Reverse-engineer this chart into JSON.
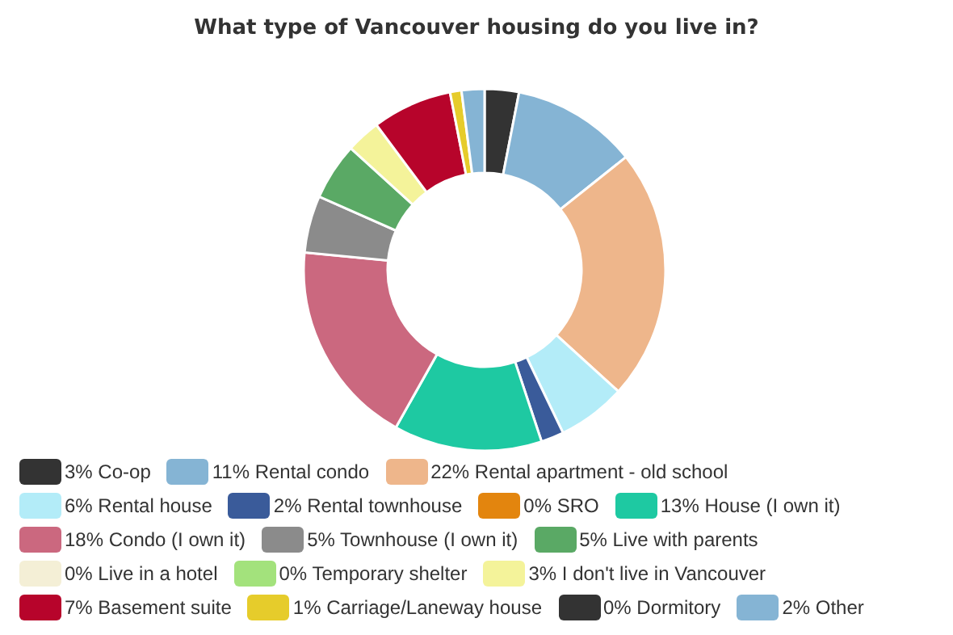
{
  "chart_data": {
    "type": "donut",
    "title": "What type of Vancouver housing do you live in?",
    "categories": [
      "3% Co-op",
      "11% Rental condo",
      "22% Rental apartment - old school",
      "6% Rental house",
      "2% Rental townhouse",
      "0% SRO",
      "13% House (I own it)",
      "18% Condo (I own it)",
      "5% Townhouse (I own it)",
      "5% Live with parents",
      "0% Live in a hotel",
      "0% Temporary shelter",
      "3% I don't live in Vancouver",
      "7% Basement suite",
      "1% Carriage/Laneway house",
      "0% Dormitory",
      "2% Other"
    ],
    "values": [
      3,
      11,
      22,
      6,
      2,
      0,
      13,
      18,
      5,
      5,
      0,
      0,
      3,
      7,
      1,
      0,
      2
    ],
    "colors": [
      "#333333",
      "#85b4d4",
      "#eeb68b",
      "#b3ecf8",
      "#3a5b9a",
      "#e3850e",
      "#1ec9a2",
      "#cb687f",
      "#8b8b8b",
      "#5aa965",
      "#f4efd6",
      "#a3e27c",
      "#f4f39a",
      "#b7042b",
      "#e6cc2b",
      "#333333",
      "#85b4d4"
    ],
    "legend": "bottom"
  }
}
